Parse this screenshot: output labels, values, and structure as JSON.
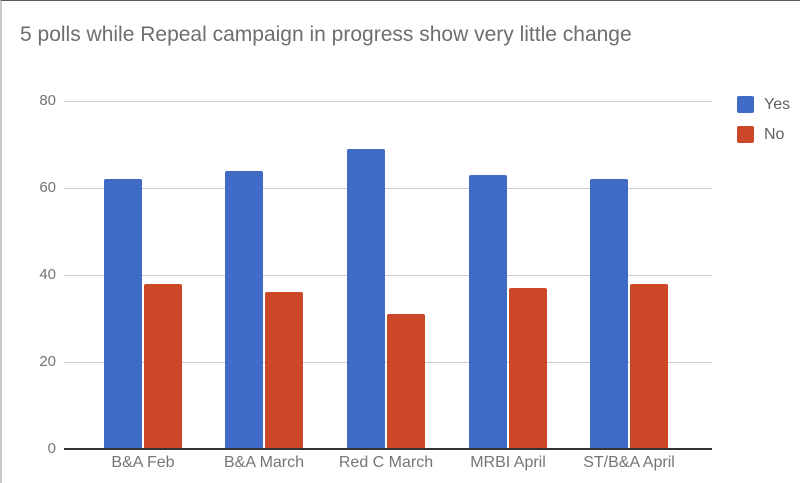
{
  "chart_data": {
    "type": "bar",
    "title": "5 polls while Repeal campaign in progress show very little change",
    "categories": [
      "B&A Feb",
      "B&A March",
      "Red C March",
      "MRBI April",
      "ST/B&A April"
    ],
    "series": [
      {
        "name": "Yes",
        "color": "#3f6bc6",
        "values": [
          62,
          64,
          69,
          63,
          62
        ]
      },
      {
        "name": "No",
        "color": "#cc4727",
        "values": [
          38,
          36,
          31,
          37,
          38
        ]
      }
    ],
    "xlabel": "",
    "ylabel": "",
    "ylim": [
      0,
      80
    ],
    "yticks": [
      0,
      20,
      40,
      60,
      80
    ],
    "grid": true,
    "legend_position": "right-top"
  },
  "colors": {
    "background": "#ffffff",
    "title_text": "#6e6e6e",
    "axis_tick_text": "#757575",
    "category_text": "#757575",
    "legend_text": "#616161",
    "gridline": "#cccccc",
    "baseline": "#333333",
    "window_border_top": "#5a5a5a",
    "window_border_left": "#c9c9c9"
  }
}
